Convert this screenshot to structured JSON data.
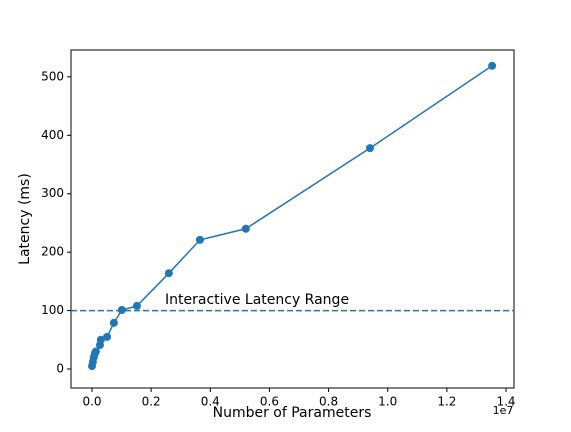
{
  "chart_data": {
    "type": "line",
    "xlabel": "Number of Parameters",
    "ylabel": "Latency (ms)",
    "x_offset_label": "1e7",
    "x": [
      0,
      0.003,
      0.006,
      0.01,
      0.013,
      0.027,
      0.03,
      0.051,
      0.074,
      0.101,
      0.152,
      0.26,
      0.365,
      0.52,
      0.94,
      1.353
    ],
    "series": [
      {
        "color": "#1f77b4",
        "values": [
          5,
          12,
          20,
          27,
          30,
          41,
          50,
          55,
          79,
          101,
          108,
          164,
          221,
          240,
          378,
          519
        ]
      }
    ],
    "xlim": [
      -0.071,
      1.427
    ],
    "ylim": [
      -32.5,
      546
    ],
    "xticks": [
      {
        "value": 0,
        "label": "0.0"
      },
      0.2,
      0.4,
      0.6,
      0.8,
      {
        "value": 1,
        "label": "1.0"
      },
      1.2,
      1.4
    ],
    "yticks": [
      0,
      100,
      200,
      300,
      400,
      500
    ],
    "hline": {
      "value": 100,
      "color": "#1f77b4"
    },
    "annotation": {
      "text": "Interactive Latency Range",
      "x": 0.247,
      "y": 118
    }
  }
}
